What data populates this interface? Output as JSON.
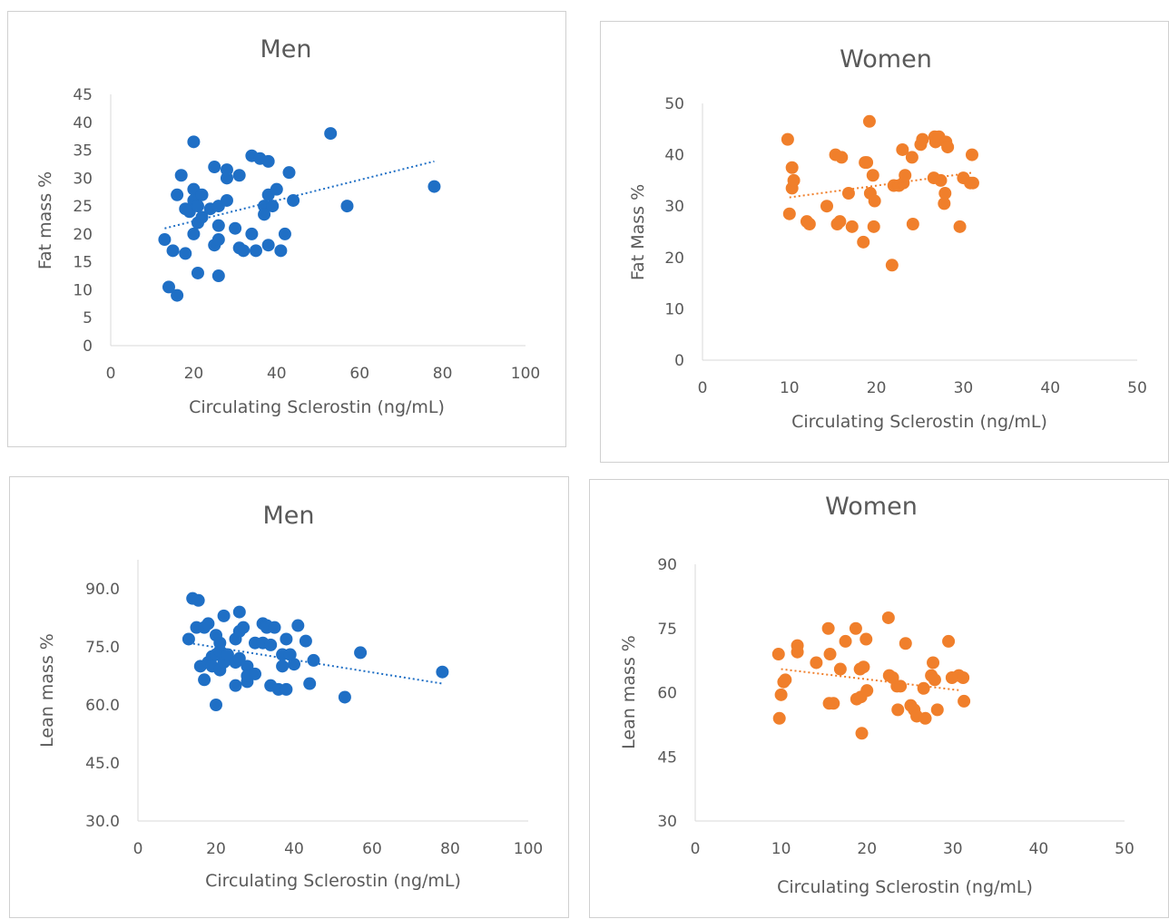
{
  "charts": [
    {
      "type": "scatter",
      "title": "Men",
      "xlabel": "Circulating Sclerostin (ng/mL)",
      "ylabel": "Fat mass %",
      "xlim": [
        0,
        100
      ],
      "ylim": [
        0,
        45
      ],
      "xticks": [
        "0",
        "20",
        "40",
        "60",
        "80",
        "100"
      ],
      "yticks": [
        "0",
        "5",
        "10",
        "15",
        "20",
        "25",
        "30",
        "35",
        "40",
        "45"
      ],
      "color": "#1f6fc5",
      "trendline": {
        "style": "dotted",
        "x": [
          13,
          78
        ],
        "y": [
          21.0,
          33.0
        ]
      },
      "points": [
        [
          13,
          19
        ],
        [
          14,
          10.5
        ],
        [
          15,
          17
        ],
        [
          16,
          9
        ],
        [
          16,
          27
        ],
        [
          17,
          30.5
        ],
        [
          18,
          16.5
        ],
        [
          18,
          24.5
        ],
        [
          19,
          24
        ],
        [
          20,
          28
        ],
        [
          20,
          20
        ],
        [
          20,
          26
        ],
        [
          20,
          36.5
        ],
        [
          21,
          22
        ],
        [
          21,
          25
        ],
        [
          21,
          13
        ],
        [
          22,
          23
        ],
        [
          22,
          27
        ],
        [
          24,
          24.5
        ],
        [
          25,
          32
        ],
        [
          25,
          18
        ],
        [
          26,
          25
        ],
        [
          26,
          19
        ],
        [
          26,
          12.5
        ],
        [
          26,
          21.5
        ],
        [
          28,
          30
        ],
        [
          28,
          31.5
        ],
        [
          28,
          26
        ],
        [
          30,
          21
        ],
        [
          31,
          17.5
        ],
        [
          31,
          30.5
        ],
        [
          32,
          17
        ],
        [
          34,
          20
        ],
        [
          34,
          34
        ],
        [
          35,
          17
        ],
        [
          36,
          33.5
        ],
        [
          37,
          25
        ],
        [
          37,
          23.5
        ],
        [
          38,
          27
        ],
        [
          38,
          33
        ],
        [
          38,
          18
        ],
        [
          39,
          25
        ],
        [
          40,
          28
        ],
        [
          41,
          17
        ],
        [
          42,
          20
        ],
        [
          43,
          31
        ],
        [
          44,
          26
        ],
        [
          53,
          38
        ],
        [
          57,
          25
        ],
        [
          78,
          28.5
        ]
      ]
    },
    {
      "type": "scatter",
      "title": "Women",
      "xlabel": "Circulating Sclerostin (ng/mL)",
      "ylabel": "Fat Mass %",
      "xlim": [
        0,
        50
      ],
      "ylim": [
        0,
        50
      ],
      "xticks": [
        "0",
        "10",
        "20",
        "30",
        "40",
        "50"
      ],
      "yticks": [
        "0",
        "10",
        "20",
        "30",
        "40",
        "50"
      ],
      "color": "#f07f2b",
      "trendline": {
        "style": "dotted",
        "x": [
          10,
          31
        ],
        "y": [
          31.7,
          36.5
        ]
      },
      "points": [
        [
          9.8,
          43
        ],
        [
          10,
          28.5
        ],
        [
          10.3,
          37.5
        ],
        [
          10.3,
          33.5
        ],
        [
          10.5,
          35
        ],
        [
          12,
          27
        ],
        [
          12.3,
          26.5
        ],
        [
          14.3,
          30
        ],
        [
          15.3,
          40
        ],
        [
          15.5,
          26.5
        ],
        [
          15.8,
          27
        ],
        [
          16,
          39.5
        ],
        [
          16.8,
          32.5
        ],
        [
          17.2,
          26
        ],
        [
          18.5,
          23
        ],
        [
          18.7,
          38.5
        ],
        [
          18.9,
          38.5
        ],
        [
          19.2,
          46.5
        ],
        [
          19.3,
          32.5
        ],
        [
          19.6,
          36
        ],
        [
          19.7,
          26
        ],
        [
          19.8,
          31
        ],
        [
          21.8,
          18.5
        ],
        [
          22,
          34
        ],
        [
          22.6,
          34
        ],
        [
          23,
          41
        ],
        [
          23.1,
          34.5
        ],
        [
          23.3,
          36
        ],
        [
          24.1,
          39.5
        ],
        [
          24.2,
          26.5
        ],
        [
          25.1,
          42
        ],
        [
          25.3,
          43
        ],
        [
          26.6,
          35.5
        ],
        [
          26.7,
          43.5
        ],
        [
          26.8,
          42.5
        ],
        [
          27.2,
          43.5
        ],
        [
          27.4,
          35
        ],
        [
          27.8,
          30.5
        ],
        [
          27.9,
          32.5
        ],
        [
          28,
          42.5
        ],
        [
          28.2,
          41.5
        ],
        [
          29.6,
          26
        ],
        [
          30,
          35.5
        ],
        [
          30.8,
          34.5
        ],
        [
          31,
          40
        ],
        [
          31.1,
          34.5
        ]
      ]
    },
    {
      "type": "scatter",
      "title": "Men",
      "xlabel": "Circulating Sclerostin (ng/mL)",
      "ylabel": "Lean mass %",
      "xlim": [
        0,
        100
      ],
      "ylim": [
        30,
        97.5
      ],
      "xticks": [
        "0",
        "20",
        "40",
        "60",
        "80",
        "100"
      ],
      "yticks": [
        "30.0",
        "45.0",
        "60.0",
        "75.0",
        "90.0"
      ],
      "color": "#1f6fc5",
      "trendline": {
        "style": "dotted",
        "x": [
          13,
          78
        ],
        "y": [
          76.0,
          65.5
        ]
      },
      "points": [
        [
          13,
          77
        ],
        [
          14,
          87.5
        ],
        [
          15,
          80
        ],
        [
          15.5,
          87
        ],
        [
          16,
          70
        ],
        [
          17,
          66.5
        ],
        [
          17,
          80
        ],
        [
          18,
          71
        ],
        [
          18,
          81
        ],
        [
          19,
          72.5
        ],
        [
          19,
          70
        ],
        [
          20,
          60
        ],
        [
          20,
          73
        ],
        [
          20,
          78
        ],
        [
          21,
          74
        ],
        [
          21,
          69
        ],
        [
          21,
          76
        ],
        [
          22,
          83
        ],
        [
          22,
          71
        ],
        [
          23,
          73
        ],
        [
          25,
          65
        ],
        [
          25,
          71
        ],
        [
          25,
          77
        ],
        [
          26,
          79
        ],
        [
          26,
          84
        ],
        [
          26,
          72
        ],
        [
          27,
          80
        ],
        [
          28,
          70
        ],
        [
          28,
          66
        ],
        [
          28,
          67.5
        ],
        [
          30,
          76
        ],
        [
          30,
          68
        ],
        [
          32,
          81
        ],
        [
          32,
          76
        ],
        [
          33,
          80.5
        ],
        [
          33,
          80
        ],
        [
          34,
          75.5
        ],
        [
          34,
          65
        ],
        [
          35,
          80
        ],
        [
          36,
          64
        ],
        [
          37,
          70
        ],
        [
          37,
          73
        ],
        [
          38,
          64
        ],
        [
          38,
          77
        ],
        [
          39,
          73
        ],
        [
          40,
          70.5
        ],
        [
          41,
          80.5
        ],
        [
          43,
          76.5
        ],
        [
          44,
          65.5
        ],
        [
          45,
          71.5
        ],
        [
          53,
          62
        ],
        [
          57,
          73.5
        ],
        [
          78,
          68.5
        ]
      ]
    },
    {
      "type": "scatter",
      "title": "Women",
      "xlabel": "Circulating Sclerostin (ng/mL)",
      "ylabel": "Lean mass %",
      "xlim": [
        0,
        50
      ],
      "ylim": [
        30,
        90
      ],
      "xticks": [
        "0",
        "10",
        "20",
        "30",
        "40",
        "50"
      ],
      "yticks": [
        "30",
        "45",
        "60",
        "75",
        "90"
      ],
      "color": "#f07f2b",
      "trendline": {
        "style": "dotted",
        "x": [
          10,
          31
        ],
        "y": [
          65.5,
          60.5
        ]
      },
      "points": [
        [
          9.7,
          69
        ],
        [
          9.8,
          54
        ],
        [
          10,
          59.5
        ],
        [
          10.3,
          62.5
        ],
        [
          10.5,
          63
        ],
        [
          11.9,
          71
        ],
        [
          11.9,
          69.5
        ],
        [
          14.1,
          67
        ],
        [
          15.5,
          75
        ],
        [
          15.6,
          57.5
        ],
        [
          15.7,
          69
        ],
        [
          16.1,
          57.5
        ],
        [
          16.9,
          65.5
        ],
        [
          17.5,
          72
        ],
        [
          18.7,
          75
        ],
        [
          18.8,
          58.5
        ],
        [
          19.2,
          65.5
        ],
        [
          19.3,
          59
        ],
        [
          19.4,
          50.5
        ],
        [
          19.6,
          66
        ],
        [
          19.9,
          72.5
        ],
        [
          20,
          60.5
        ],
        [
          22.5,
          77.5
        ],
        [
          22.6,
          64
        ],
        [
          23,
          63.5
        ],
        [
          23.5,
          61.5
        ],
        [
          23.6,
          56
        ],
        [
          23.9,
          61.5
        ],
        [
          24.5,
          71.5
        ],
        [
          25.1,
          57
        ],
        [
          25.5,
          56
        ],
        [
          25.8,
          54.5
        ],
        [
          26.6,
          61
        ],
        [
          26.8,
          54
        ],
        [
          27.5,
          64
        ],
        [
          27.7,
          67
        ],
        [
          27.9,
          63
        ],
        [
          28.2,
          56
        ],
        [
          29.5,
          72
        ],
        [
          29.9,
          63.5
        ],
        [
          30.7,
          64
        ],
        [
          31.2,
          63.5
        ],
        [
          31.3,
          58
        ]
      ]
    }
  ]
}
